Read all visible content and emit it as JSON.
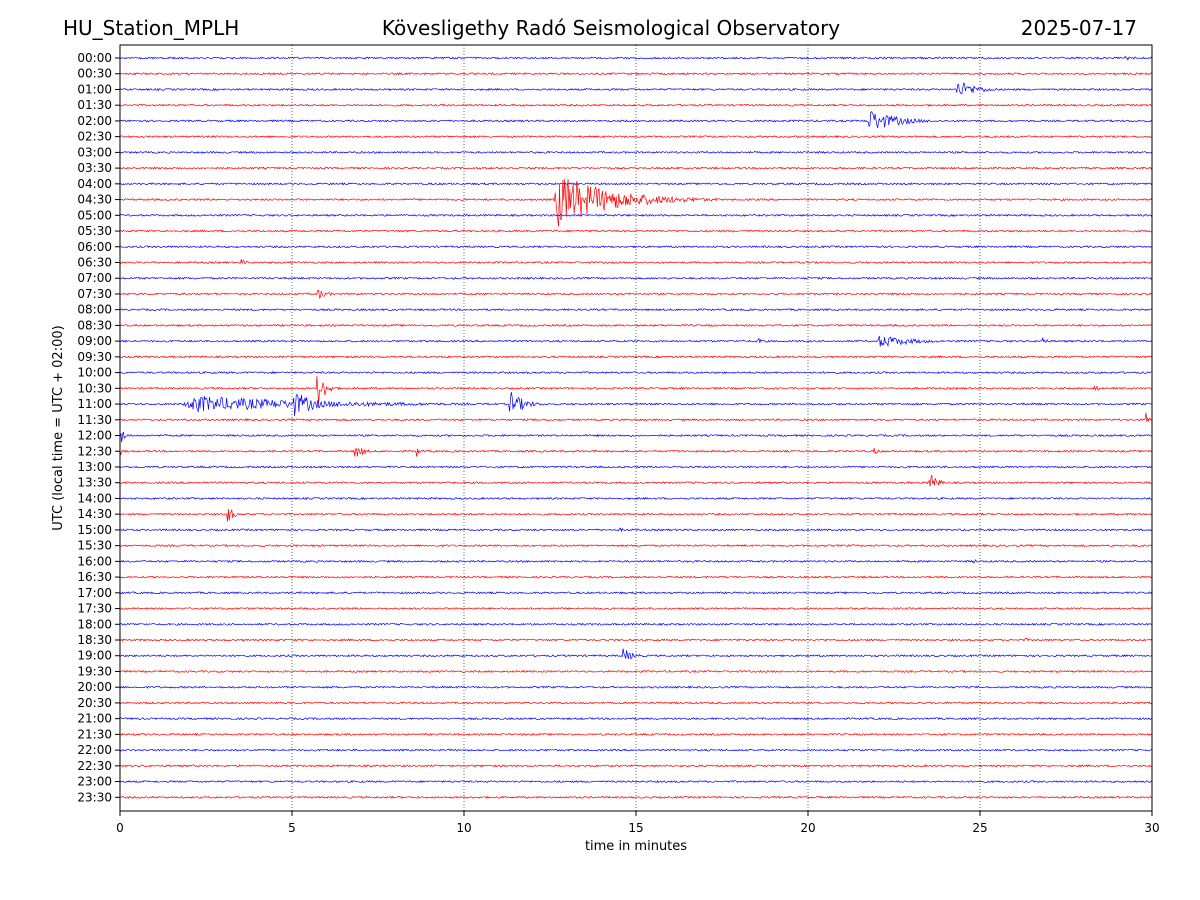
{
  "header": {
    "station": "HU_Station_MPLH",
    "observatory": "Kövesligethy Radó Seismological Observatory",
    "date": "2025-07-17"
  },
  "chart_data": {
    "type": "line",
    "title": "Kövesligethy Radó Seismological Observatory",
    "xlabel": "time in minutes",
    "ylabel": "UTC (local time = UTC + 02:00)",
    "xlim": [
      0,
      30
    ],
    "xticks": [
      "0",
      "5",
      "10",
      "15",
      "20",
      "25",
      "30"
    ],
    "grid": "vertical dotted at each x tick",
    "trace_colors": [
      "#0000ff",
      "#ff0000"
    ],
    "rows": [
      "00:00",
      "00:30",
      "01:00",
      "01:30",
      "02:00",
      "02:30",
      "03:00",
      "03:30",
      "04:00",
      "04:30",
      "05:00",
      "05:30",
      "06:00",
      "06:30",
      "07:00",
      "07:30",
      "08:00",
      "08:30",
      "09:00",
      "09:30",
      "10:00",
      "10:30",
      "11:00",
      "11:30",
      "12:00",
      "12:30",
      "13:00",
      "13:30",
      "14:00",
      "14:30",
      "15:00",
      "15:30",
      "16:00",
      "16:30",
      "17:00",
      "17:30",
      "18:00",
      "18:30",
      "19:00",
      "19:30",
      "20:00",
      "20:30",
      "21:00",
      "21:30",
      "22:00",
      "22:30",
      "23:00",
      "23:30"
    ],
    "events": [
      {
        "row": 0,
        "t": 29.2,
        "dur": 1.0,
        "amp": 3
      },
      {
        "row": 2,
        "t": 24.3,
        "dur": 1.8,
        "amp": 10
      },
      {
        "row": 4,
        "t": 21.7,
        "dur": 2.5,
        "amp": 13
      },
      {
        "row": 9,
        "t": 12.6,
        "dur": 4.8,
        "amp": 30
      },
      {
        "row": 13,
        "t": 3.5,
        "dur": 0.6,
        "amp": 4
      },
      {
        "row": 15,
        "t": 5.7,
        "dur": 0.8,
        "amp": 7
      },
      {
        "row": 18,
        "t": 18.5,
        "dur": 0.6,
        "amp": 4
      },
      {
        "row": 18,
        "t": 22.0,
        "dur": 3.0,
        "amp": 7
      },
      {
        "row": 18,
        "t": 26.8,
        "dur": 0.3,
        "amp": 8
      },
      {
        "row": 21,
        "t": 5.7,
        "dur": 0.7,
        "amp": 22
      },
      {
        "row": 21,
        "t": 28.3,
        "dur": 0.4,
        "amp": 6
      },
      {
        "row": 22,
        "t": 1.8,
        "dur": 12.0,
        "amp": 9
      },
      {
        "row": 22,
        "t": 2.4,
        "dur": 0.4,
        "amp": 12
      },
      {
        "row": 22,
        "t": 5.0,
        "dur": 2.0,
        "amp": 14
      },
      {
        "row": 22,
        "t": 11.3,
        "dur": 1.2,
        "amp": 15
      },
      {
        "row": 23,
        "t": 29.8,
        "dur": 0.2,
        "amp": 14
      },
      {
        "row": 24,
        "t": 0.0,
        "dur": 0.3,
        "amp": 16
      },
      {
        "row": 25,
        "t": 0.0,
        "dur": 0.2,
        "amp": 6
      },
      {
        "row": 25,
        "t": 6.8,
        "dur": 0.7,
        "amp": 10
      },
      {
        "row": 25,
        "t": 8.6,
        "dur": 0.3,
        "amp": 7
      },
      {
        "row": 25,
        "t": 21.9,
        "dur": 0.6,
        "amp": 4
      },
      {
        "row": 27,
        "t": 23.5,
        "dur": 0.6,
        "amp": 16
      },
      {
        "row": 29,
        "t": 3.1,
        "dur": 0.5,
        "amp": 12
      },
      {
        "row": 30,
        "t": 14.5,
        "dur": 0.4,
        "amp": 3
      },
      {
        "row": 32,
        "t": 24.8,
        "dur": 0.3,
        "amp": 4
      },
      {
        "row": 37,
        "t": 26.3,
        "dur": 0.4,
        "amp": 3
      },
      {
        "row": 38,
        "t": 14.6,
        "dur": 0.8,
        "amp": 9
      }
    ]
  }
}
